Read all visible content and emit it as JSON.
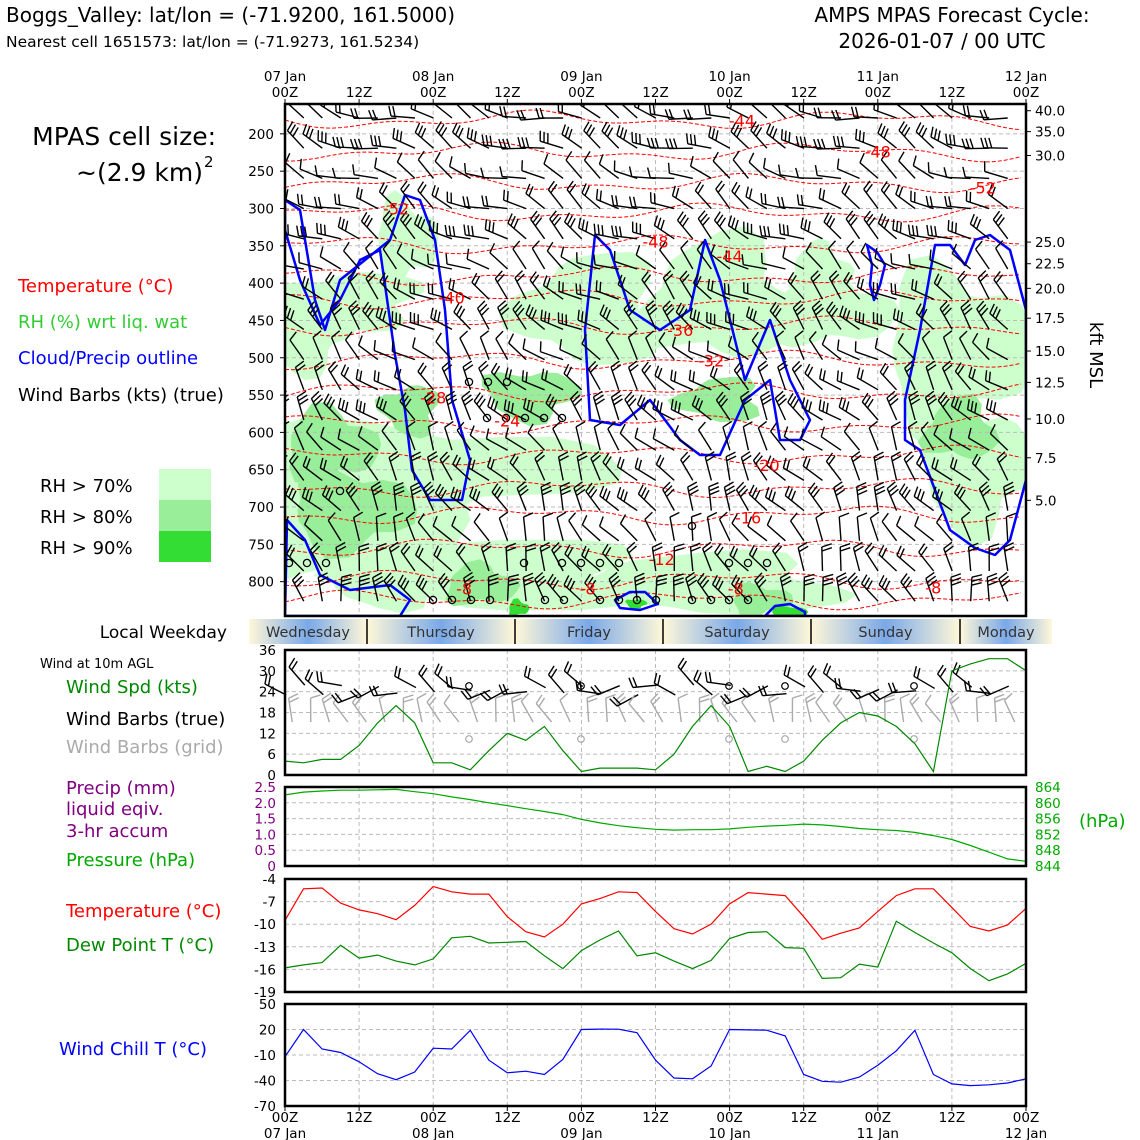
{
  "header": {
    "station_line": "Boggs_Valley: lat/lon = (-71.9200, 161.5000)",
    "cell_line": "Nearest cell 1651573: lat/lon = (-71.9273, 161.5234)",
    "model_line": "AMPS MPAS Forecast Cycle:",
    "cycle_line": "2026-01-07 / 00 UTC"
  },
  "left_legend": {
    "cell_size_label": "MPAS cell size:",
    "cell_size_value": "~(2.9 km)",
    "cell_size_exp": "2",
    "temperature": "Temperature (°C)",
    "rh": "RH (%) wrt liq. wat",
    "cloud": "Cloud/Precip outline",
    "barbs": "Wind Barbs (kts) (true)",
    "rh70": "RH > 70%",
    "rh80": "RH > 80%",
    "rh90": "RH > 90%",
    "weekday_label": "Local Weekday",
    "wind_agl": "Wind at 10m AGL",
    "wind_spd": "Wind Spd (kts)",
    "wind_barbs_true": "Wind Barbs (true)",
    "wind_barbs_grid": "Wind Barbs (grid)",
    "precip1": "Precip (mm)",
    "precip2": "liquid eqiv.",
    "precip3": "3-hr accum",
    "pressure": "Pressure (hPa)",
    "pressure_unit": "(hPa)",
    "temp2": "Temperature (°C)",
    "dewpoint": "Dew Point T (°C)",
    "windchill": "Wind Chill T (°C)",
    "kft": "kft MSL"
  },
  "colors": {
    "temp": "#ff0000",
    "rh_label": "#33cc33",
    "cloud": "#0000ff",
    "rh70": "#ccffcc",
    "rh80": "#99ee99",
    "rh90": "#33dd33",
    "green": "#008800",
    "purple": "#800080",
    "pressure": "#00aa00",
    "grey": "#aaaaaa",
    "windchill": "#0000ff"
  },
  "chart_data": [
    {
      "type": "time-height cross section",
      "title": "Upper-air forecast",
      "x_top_hours": [
        "00Z",
        "12Z",
        "00Z",
        "12Z",
        "00Z",
        "12Z",
        "00Z",
        "12Z",
        "00Z",
        "12Z",
        "00Z"
      ],
      "x_top_dates": [
        "07 Jan",
        "",
        "08 Jan",
        "",
        "09 Jan",
        "",
        "10 Jan",
        "",
        "11 Jan",
        "",
        "12 Jan"
      ],
      "x_range_hours": [
        0,
        120
      ],
      "y_pressure_ticks": [
        200,
        250,
        300,
        350,
        400,
        450,
        500,
        550,
        600,
        650,
        700,
        750,
        800
      ],
      "y_pressure_range": [
        160,
        846
      ],
      "y_kft_ticks": [
        {
          "label": "40.0",
          "p": 169
        },
        {
          "label": "35.0",
          "p": 197
        },
        {
          "label": "30.0",
          "p": 229
        },
        {
          "label": "25.0",
          "p": 345
        },
        {
          "label": "22.5",
          "p": 374
        },
        {
          "label": "20.0",
          "p": 407
        },
        {
          "label": "17.5",
          "p": 447
        },
        {
          "label": "15.0",
          "p": 491
        },
        {
          "label": "12.5",
          "p": 533
        },
        {
          "label": "10.0",
          "p": 582
        },
        {
          "label": "7.5",
          "p": 634
        },
        {
          "label": "5.0",
          "p": 691
        }
      ],
      "temperature_labels": [
        {
          "text": "-44",
          "h": 74,
          "p": 190
        },
        {
          "text": "-48",
          "h": 96,
          "p": 232
        },
        {
          "text": "-52",
          "h": 113,
          "p": 280
        },
        {
          "text": "-52",
          "h": 18,
          "p": 308
        },
        {
          "text": "-48",
          "h": 60,
          "p": 352
        },
        {
          "text": "-44",
          "h": 72,
          "p": 372
        },
        {
          "text": "-40",
          "h": 27,
          "p": 427
        },
        {
          "text": "-36",
          "h": 64,
          "p": 471
        },
        {
          "text": "-32",
          "h": 69,
          "p": 512
        },
        {
          "text": "-28",
          "h": 24,
          "p": 561
        },
        {
          "text": "-24",
          "h": 36,
          "p": 592
        },
        {
          "text": "-20",
          "h": 78,
          "p": 652
        },
        {
          "text": "-16",
          "h": 75,
          "p": 722
        },
        {
          "text": "-12",
          "h": 61,
          "p": 778
        },
        {
          "text": "-8",
          "h": 29,
          "p": 817
        },
        {
          "text": "-8",
          "h": 49,
          "p": 817
        },
        {
          "text": "-8",
          "h": 73,
          "p": 817
        },
        {
          "text": "-8",
          "h": 105,
          "p": 816
        }
      ],
      "legend": [
        "Temperature (°C)",
        "RH (%) wrt liq. wat",
        "Cloud/Precip outline",
        "Wind Barbs (kts) (true)"
      ]
    },
    {
      "type": "band",
      "title": "Local Weekday",
      "labels": [
        "Wednesday",
        "Thursday",
        "Friday",
        "Saturday",
        "Sunday",
        "Monday"
      ]
    },
    {
      "type": "line",
      "title": "Wind at 10m AGL",
      "series": [
        {
          "name": "Wind Spd (kts)",
          "x": [
            0,
            3,
            6,
            9,
            12,
            15,
            18,
            21,
            24,
            27,
            30,
            33,
            36,
            39,
            42,
            45,
            48,
            51,
            54,
            57,
            60,
            63,
            66,
            69,
            72,
            75,
            78,
            81,
            84,
            87,
            90,
            93,
            96,
            99,
            102,
            105,
            108,
            111,
            114,
            117,
            120
          ],
          "values": [
            4,
            3.5,
            4.5,
            4.5,
            8.5,
            15,
            20,
            15,
            3.5,
            3.5,
            1.5,
            7,
            12,
            10,
            14,
            7,
            1,
            2,
            2,
            2,
            1.5,
            6,
            14,
            20,
            14,
            1,
            2.5,
            1,
            4,
            10,
            15,
            18,
            17,
            14,
            9,
            1,
            30,
            32,
            33.5,
            33.5,
            30
          ]
        }
      ],
      "ylim": [
        0,
        36
      ],
      "yticks": [
        0,
        6,
        12,
        18,
        24,
        30,
        36
      ],
      "legend": [
        "Wind Spd (kts)",
        "Wind Barbs (true)",
        "Wind Barbs (grid)"
      ]
    },
    {
      "type": "line",
      "title": "Precip / Pressure",
      "left_ylim": [
        0,
        2.5
      ],
      "left_yticks": [
        0,
        0.5,
        1.0,
        1.5,
        2.0,
        2.5
      ],
      "right_ylim": [
        844,
        864
      ],
      "right_yticks": [
        844,
        848,
        852,
        856,
        860,
        864
      ],
      "series": [
        {
          "name": "Pressure (hPa)",
          "x": [
            0,
            3,
            6,
            9,
            12,
            15,
            18,
            21,
            24,
            27,
            30,
            33,
            36,
            39,
            42,
            45,
            48,
            51,
            54,
            57,
            60,
            63,
            66,
            69,
            72,
            75,
            78,
            81,
            84,
            87,
            90,
            93,
            96,
            99,
            102,
            105,
            108,
            111,
            114,
            117,
            120
          ],
          "values": [
            862,
            862.7,
            863,
            863.2,
            863.2,
            863.3,
            863.4,
            862.8,
            862.3,
            861.5,
            860.8,
            860,
            859.3,
            858.5,
            857.8,
            857,
            855.8,
            854.9,
            854.2,
            853.7,
            853.3,
            853.1,
            853.2,
            853.2,
            853.4,
            853.8,
            854.1,
            854.3,
            854.6,
            854.4,
            854,
            853.5,
            853.2,
            853,
            852.5,
            851.7,
            850.7,
            849.2,
            847.5,
            845.8,
            845.2
          ]
        },
        {
          "name": "Precip (mm)",
          "x": [],
          "values": []
        }
      ]
    },
    {
      "type": "line",
      "title": "Temperature / Dew Point",
      "ylim": [
        -19,
        -4
      ],
      "yticks": [
        -4,
        -7,
        -10,
        -13,
        -16,
        -19
      ],
      "series": [
        {
          "name": "Temperature (°C)",
          "x": [
            0,
            3,
            6,
            9,
            12,
            15,
            18,
            21,
            24,
            27,
            30,
            33,
            36,
            39,
            42,
            45,
            48,
            51,
            54,
            57,
            60,
            63,
            66,
            69,
            72,
            75,
            78,
            81,
            84,
            87,
            90,
            93,
            96,
            99,
            102,
            105,
            108,
            111,
            114,
            117,
            120
          ],
          "values": [
            -9.5,
            -5.3,
            -5.2,
            -7.2,
            -8.1,
            -8.6,
            -9.4,
            -7.5,
            -5,
            -5.7,
            -6,
            -6,
            -9,
            -11,
            -11.7,
            -10,
            -7.3,
            -6.6,
            -5.7,
            -5.8,
            -8.3,
            -10.6,
            -11.3,
            -10,
            -7.3,
            -5.8,
            -6,
            -6.2,
            -9,
            -12,
            -11.2,
            -10.5,
            -8.3,
            -6.2,
            -5.3,
            -5.3,
            -7.8,
            -10.3,
            -10.9,
            -10.1,
            -7.9
          ]
        },
        {
          "name": "Dew Point T (°C)",
          "x": [
            0,
            3,
            6,
            9,
            12,
            15,
            18,
            21,
            24,
            27,
            30,
            33,
            36,
            39,
            42,
            45,
            48,
            51,
            54,
            57,
            60,
            63,
            66,
            69,
            72,
            75,
            78,
            81,
            84,
            87,
            90,
            93,
            96,
            99,
            102,
            105,
            108,
            111,
            114,
            117,
            120
          ],
          "values": [
            -15.8,
            -15.4,
            -15.1,
            -12.8,
            -14.5,
            -14.1,
            -14.9,
            -15.4,
            -14.6,
            -11.8,
            -11.6,
            -12.5,
            -12.4,
            -12.3,
            -14.2,
            -15.9,
            -13.5,
            -12.1,
            -10.9,
            -14.2,
            -13.8,
            -14.9,
            -15.9,
            -14.8,
            -11.9,
            -11.1,
            -11,
            -13.1,
            -13.2,
            -17.2,
            -17.1,
            -15.3,
            -15.7,
            -9.6,
            -11.1,
            -12.5,
            -13.8,
            -15.9,
            -17.5,
            -16.6,
            -15.2
          ]
        }
      ]
    },
    {
      "type": "line",
      "title": "Wind Chill",
      "ylim": [
        -70,
        50
      ],
      "yticks": [
        50,
        20,
        -10,
        -40,
        -70
      ],
      "series": [
        {
          "name": "Wind Chill T (°C)",
          "x": [
            0,
            3,
            6,
            9,
            12,
            15,
            18,
            21,
            24,
            27,
            30,
            33,
            36,
            39,
            42,
            45,
            48,
            51,
            54,
            57,
            60,
            63,
            66,
            69,
            72,
            75,
            78,
            81,
            84,
            87,
            90,
            93,
            96,
            99,
            102,
            105,
            108,
            111,
            114,
            117,
            120
          ],
          "values": [
            -12,
            20,
            -3,
            -7,
            -18,
            -32,
            -39,
            -30,
            -2,
            -3,
            19,
            -16,
            -31,
            -29,
            -33,
            -15,
            20,
            20.5,
            20.3,
            16.2,
            -16,
            -37,
            -38,
            -23,
            20,
            19.5,
            19.2,
            12.5,
            -33,
            -41,
            -42,
            -36,
            -22,
            -5,
            19,
            -33,
            -44,
            -46,
            -45,
            -43,
            -38
          ]
        }
      ]
    },
    {
      "type": "axis",
      "title": "Bottom time axis",
      "x_bottom_hours": [
        "00Z",
        "12Z",
        "00Z",
        "12Z",
        "00Z",
        "12Z",
        "00Z",
        "12Z",
        "00Z",
        "12Z",
        "00Z"
      ],
      "x_bottom_dates": [
        "07 Jan",
        "",
        "08 Jan",
        "",
        "09 Jan",
        "",
        "10 Jan",
        "",
        "11 Jan",
        "",
        "12 Jan"
      ]
    }
  ]
}
